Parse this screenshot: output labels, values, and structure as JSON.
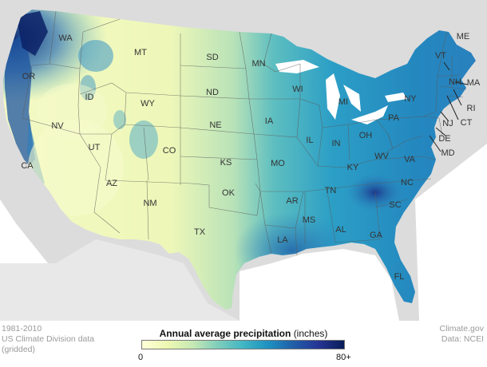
{
  "legend": {
    "title_bold": "Annual average precipitation",
    "title_unit": "(inches)",
    "min_label": "0",
    "max_label": "80+",
    "colors": [
      "#ffffd9",
      "#edf8b1",
      "#c7e9b4",
      "#7fcdbb",
      "#41b6c4",
      "#1d91c0",
      "#225ea8",
      "#253494",
      "#081d58"
    ]
  },
  "footer": {
    "period": "1981-2010",
    "source_line1": "US Climate Division data",
    "source_line2": "(gridded)",
    "credit": "Climate.gov",
    "data_credit": "Data: NCEI"
  },
  "states": [
    {
      "abbr": "WA"
    },
    {
      "abbr": "OR"
    },
    {
      "abbr": "CA"
    },
    {
      "abbr": "NV"
    },
    {
      "abbr": "ID"
    },
    {
      "abbr": "MT"
    },
    {
      "abbr": "WY"
    },
    {
      "abbr": "UT"
    },
    {
      "abbr": "AZ"
    },
    {
      "abbr": "CO"
    },
    {
      "abbr": "NM"
    },
    {
      "abbr": "SD"
    },
    {
      "abbr": "ND"
    },
    {
      "abbr": "NE"
    },
    {
      "abbr": "KS"
    },
    {
      "abbr": "OK"
    },
    {
      "abbr": "TX"
    },
    {
      "abbr": "MN"
    },
    {
      "abbr": "IA"
    },
    {
      "abbr": "MO"
    },
    {
      "abbr": "AR"
    },
    {
      "abbr": "LA"
    },
    {
      "abbr": "WI"
    },
    {
      "abbr": "IL"
    },
    {
      "abbr": "MI"
    },
    {
      "abbr": "IN"
    },
    {
      "abbr": "OH"
    },
    {
      "abbr": "KY"
    },
    {
      "abbr": "TN"
    },
    {
      "abbr": "MS"
    },
    {
      "abbr": "AL"
    },
    {
      "abbr": "GA"
    },
    {
      "abbr": "FL"
    },
    {
      "abbr": "SC"
    },
    {
      "abbr": "NC"
    },
    {
      "abbr": "VA"
    },
    {
      "abbr": "WV"
    },
    {
      "abbr": "PA"
    },
    {
      "abbr": "NY"
    },
    {
      "abbr": "ME"
    },
    {
      "abbr": "VT"
    },
    {
      "abbr": "NH"
    },
    {
      "abbr": "MA"
    },
    {
      "abbr": "RI"
    },
    {
      "abbr": "CT"
    },
    {
      "abbr": "NJ"
    },
    {
      "abbr": "DE"
    },
    {
      "abbr": "MD"
    }
  ]
}
